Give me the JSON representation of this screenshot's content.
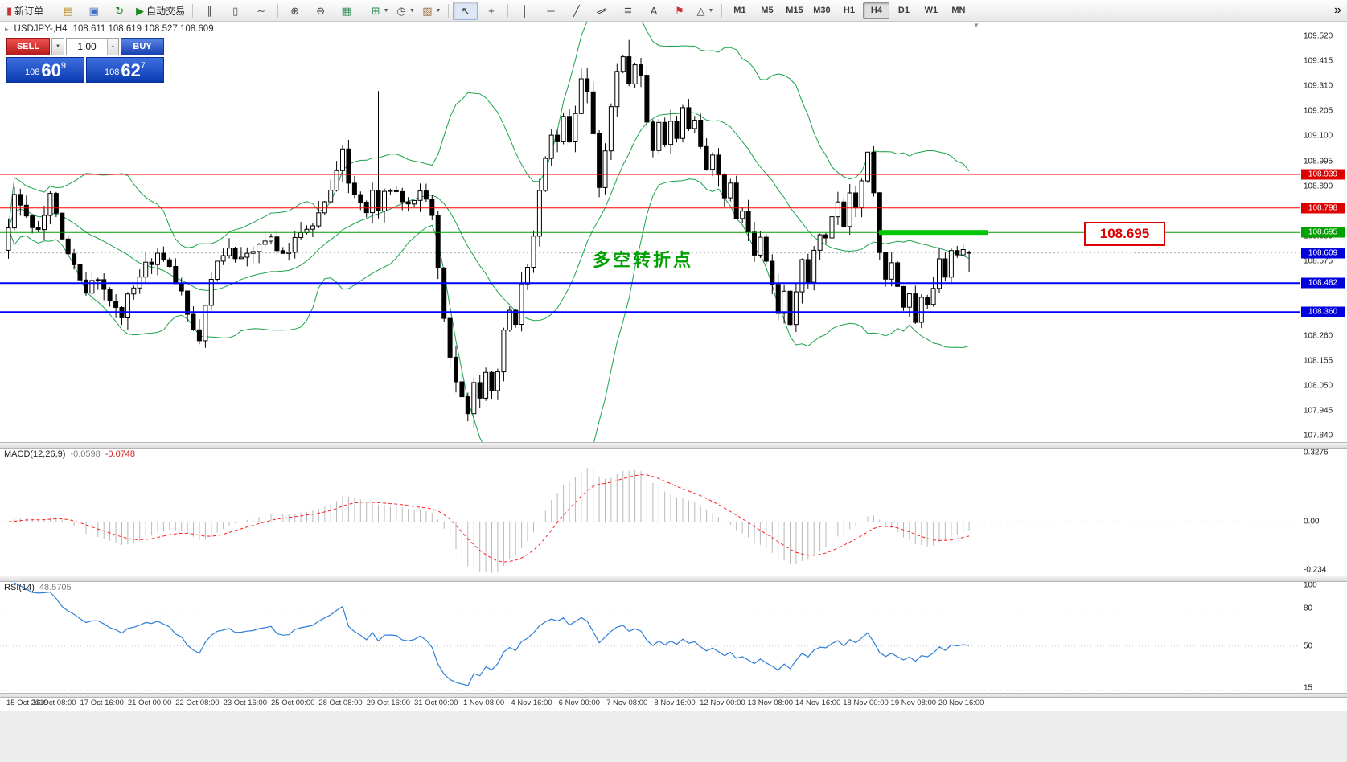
{
  "icons": {
    "caret_down": "▼",
    "caret_up": "▲",
    "shift_marker": "▼",
    "chart_title": "▸",
    "overflow": "»"
  },
  "toolbar": {
    "buttons": [
      {
        "name": "new-order-button",
        "glyph": "▮",
        "color": "#cc3333",
        "label": "新订单"
      },
      {
        "sep": true
      },
      {
        "name": "charts-button",
        "glyph": "▤",
        "color": "#bb8822"
      },
      {
        "name": "profiles-button",
        "glyph": "▣",
        "color": "#3f6fc8"
      },
      {
        "name": "refresh-button",
        "glyph": "↻",
        "color": "#1a8a1a"
      },
      {
        "name": "autotrading-button",
        "glyph": "▶",
        "color": "#1a8a1a",
        "label": "自动交易"
      },
      {
        "sep": true
      },
      {
        "name": "bar-chart-type-button",
        "glyph": "∥",
        "color": "#555555"
      },
      {
        "name": "candlestick-type-button",
        "glyph": "▯",
        "color": "#555555"
      },
      {
        "name": "line-chart-type-button",
        "glyph": "∼",
        "color": "#555555"
      },
      {
        "sep": true
      },
      {
        "name": "zoom-in-button",
        "glyph": "⊕",
        "color": "#444444"
      },
      {
        "name": "zoom-out-button",
        "glyph": "⊖",
        "color": "#444444"
      },
      {
        "name": "tester-button",
        "glyph": "▦",
        "color": "#2e8b57"
      },
      {
        "sep": true
      },
      {
        "name": "indicators-dropdown",
        "glyph": "⊞",
        "color": "#2e8b57",
        "dropdown": true
      },
      {
        "name": "periods-dropdown",
        "glyph": "◷",
        "color": "#444444",
        "dropdown": true
      },
      {
        "name": "templates-dropdown",
        "glyph": "▨",
        "color": "#996633",
        "dropdown": true
      },
      {
        "sep": true
      },
      {
        "name": "cursor-button",
        "glyph": "↖",
        "color": "#333333",
        "active": true
      },
      {
        "name": "crosshair-button",
        "glyph": "+",
        "color": "#333333"
      },
      {
        "sep": true
      },
      {
        "name": "vertical-line-button",
        "glyph": "│",
        "color": "#444444"
      },
      {
        "name": "horizontal-line-button",
        "glyph": "─",
        "color": "#444444"
      },
      {
        "name": "trendline-button",
        "glyph": "╱",
        "color": "#444444"
      },
      {
        "name": "channel-button",
        "glyph": "∥",
        "color": "#444444",
        "rotate": 65
      },
      {
        "name": "fibonacci-button",
        "glyph": "≣",
        "color": "#444444"
      },
      {
        "name": "text-button",
        "glyph": "A",
        "color": "#444444"
      },
      {
        "name": "label-button",
        "glyph": "⚑",
        "color": "#cc3333"
      },
      {
        "name": "shapes-dropdown",
        "glyph": "△",
        "color": "#444444",
        "dropdown": true
      },
      {
        "sep": true
      }
    ],
    "timeframes": [
      "M1",
      "M5",
      "M15",
      "M30",
      "H1",
      "H4",
      "D1",
      "W1",
      "MN"
    ],
    "active_timeframe": "H4"
  },
  "one_click": {
    "sell_label": "SELL",
    "buy_label": "BUY",
    "volume": "1.00",
    "bid_prefix": "108",
    "bid_main": "60",
    "bid_sup": "9",
    "ask_prefix": "108",
    "ask_main": "62",
    "ask_sup": "7"
  },
  "chart": {
    "title_symbol": "USDJPY-,H4",
    "title_ohlc": "108.611 108.619 108.527 108.609",
    "annotation_text": "多空转折点",
    "big_price_label": "108.695",
    "bid_label": "108.609",
    "axis_max": 109.585,
    "axis_min": 107.813,
    "axis_ticks": [
      "109.520",
      "109.415",
      "109.310",
      "109.205",
      "109.100",
      "108.995",
      "108.890",
      "108.785",
      "108.680",
      "108.575",
      "108.470",
      "108.365",
      "108.260",
      "108.155",
      "108.050",
      "107.945",
      "107.840"
    ],
    "levels": [
      {
        "price": 108.939,
        "label": "108.939",
        "color": "#ff0000",
        "width": 1,
        "label_bg": "#dd0000"
      },
      {
        "price": 108.798,
        "label": "108.798",
        "color": "#ff0000",
        "width": 1,
        "label_bg": "#dd0000"
      },
      {
        "price": 108.695,
        "label": "108.695",
        "color": "#00a000",
        "width": 1,
        "label_bg": "#00a000",
        "thick_segment": true
      },
      {
        "price": 108.482,
        "label": "108.482",
        "color": "#0000ff",
        "width": 2,
        "label_bg": "#0000dd"
      },
      {
        "price": 108.36,
        "label": "108.360",
        "color": "#0000ff",
        "width": 2,
        "label_bg": "#0000dd"
      }
    ],
    "colors": {
      "bollinger": "#1aa34a",
      "candle_up": "#ffffff",
      "candle_down": "#000000",
      "thick_segment": "#00c800",
      "bid_line": "#b9b9b9",
      "macd_histogram": "#b8b8b8",
      "macd_signal": "#ff2020",
      "rsi_line": "#2f7ed8",
      "tag_blue": "#0000dd"
    }
  },
  "macd_pane": {
    "name": "MACD(12,26,9)",
    "value1": "-0.0598",
    "value2": "-0.0748",
    "scale_top": "0.3276",
    "scale_mid": "0.00",
    "scale_bottom": "-0.234",
    "range_max": 0.3276,
    "range_min": -0.234
  },
  "rsi_pane": {
    "name": "RSI(14)",
    "value": "48.5705",
    "scale": [
      {
        "label": "100",
        "value": 100
      },
      {
        "label": "80",
        "value": 80
      },
      {
        "label": "50",
        "value": 50
      },
      {
        "label": "15",
        "value": 15
      }
    ],
    "levels": [
      80,
      50,
      15
    ],
    "range_max": 102,
    "range_min": 13
  },
  "dates": [
    "15 Oct 2019",
    "16 Oct 08:00",
    "17 Oct 16:00",
    "21 Oct 00:00",
    "22 Oct 08:00",
    "23 Oct 16:00",
    "25 Oct 00:00",
    "28 Oct 08:00",
    "29 Oct 16:00",
    "31 Oct 00:00",
    "1 Nov 08:00",
    "4 Nov 16:00",
    "6 Nov 00:00",
    "7 Nov 08:00",
    "8 Nov 16:00",
    "12 Nov 00:00",
    "13 Nov 08:00",
    "14 Nov 16:00",
    "18 Nov 00:00",
    "19 Nov 08:00",
    "20 Nov 16:00"
  ],
  "chart_data": {
    "type": "candlestick",
    "symbol": "USDJPY",
    "timeframe": "H4",
    "candle_count": 162,
    "bars_per_date_label": 8,
    "y_axis": {
      "min": 107.84,
      "max": 109.52,
      "tick_step": 0.105
    },
    "last_candle": {
      "open": 108.611,
      "high": 108.619,
      "low": 108.527,
      "close": 108.609
    },
    "special_wicks": [
      [
        62,
        "high",
        109.29
      ],
      [
        78,
        "low",
        107.875
      ],
      [
        104,
        "high",
        109.505
      ]
    ],
    "price_path_anchors": [
      [
        0,
        108.62
      ],
      [
        2,
        108.85
      ],
      [
        4,
        108.75
      ],
      [
        6,
        108.7
      ],
      [
        8,
        108.86
      ],
      [
        10,
        108.66
      ],
      [
        12,
        108.56
      ],
      [
        14,
        108.45
      ],
      [
        16,
        108.5
      ],
      [
        18,
        108.42
      ],
      [
        20,
        108.36
      ],
      [
        22,
        108.48
      ],
      [
        24,
        108.55
      ],
      [
        26,
        108.6
      ],
      [
        28,
        108.54
      ],
      [
        30,
        108.45
      ],
      [
        32,
        108.3
      ],
      [
        33,
        108.24
      ],
      [
        34,
        108.4
      ],
      [
        36,
        108.55
      ],
      [
        38,
        108.62
      ],
      [
        40,
        108.58
      ],
      [
        42,
        108.62
      ],
      [
        44,
        108.68
      ],
      [
        46,
        108.64
      ],
      [
        48,
        108.6
      ],
      [
        50,
        108.7
      ],
      [
        52,
        108.73
      ],
      [
        54,
        108.8
      ],
      [
        56,
        108.95
      ],
      [
        57,
        109.03
      ],
      [
        58,
        108.9
      ],
      [
        60,
        108.84
      ],
      [
        61,
        108.76
      ],
      [
        62,
        108.86
      ],
      [
        63,
        108.8
      ],
      [
        64,
        108.86
      ],
      [
        66,
        108.88
      ],
      [
        68,
        108.8
      ],
      [
        70,
        108.86
      ],
      [
        72,
        108.78
      ],
      [
        73,
        108.55
      ],
      [
        74,
        108.32
      ],
      [
        75,
        108.16
      ],
      [
        76,
        108.06
      ],
      [
        77,
        107.98
      ],
      [
        78,
        107.95
      ],
      [
        79,
        108.06
      ],
      [
        80,
        107.99
      ],
      [
        81,
        108.09
      ],
      [
        82,
        108.03
      ],
      [
        83,
        108.13
      ],
      [
        84,
        108.26
      ],
      [
        85,
        108.36
      ],
      [
        86,
        108.31
      ],
      [
        87,
        108.46
      ],
      [
        88,
        108.56
      ],
      [
        89,
        108.7
      ],
      [
        90,
        108.86
      ],
      [
        91,
        109.0
      ],
      [
        92,
        109.12
      ],
      [
        93,
        109.06
      ],
      [
        94,
        109.16
      ],
      [
        95,
        109.1
      ],
      [
        96,
        109.2
      ],
      [
        97,
        109.34
      ],
      [
        98,
        109.27
      ],
      [
        99,
        109.1
      ],
      [
        100,
        108.88
      ],
      [
        101,
        109.02
      ],
      [
        102,
        109.2
      ],
      [
        103,
        109.38
      ],
      [
        104,
        109.44
      ],
      [
        105,
        109.32
      ],
      [
        106,
        109.42
      ],
      [
        107,
        109.35
      ],
      [
        108,
        109.16
      ],
      [
        109,
        109.06
      ],
      [
        110,
        109.14
      ],
      [
        111,
        109.08
      ],
      [
        112,
        109.16
      ],
      [
        113,
        109.1
      ],
      [
        114,
        109.2
      ],
      [
        115,
        109.12
      ],
      [
        116,
        109.18
      ],
      [
        117,
        109.04
      ],
      [
        118,
        108.94
      ],
      [
        119,
        109.0
      ],
      [
        120,
        108.95
      ],
      [
        121,
        108.85
      ],
      [
        122,
        108.9
      ],
      [
        123,
        108.76
      ],
      [
        124,
        108.8
      ],
      [
        125,
        108.7
      ],
      [
        126,
        108.6
      ],
      [
        127,
        108.66
      ],
      [
        128,
        108.56
      ],
      [
        129,
        108.46
      ],
      [
        130,
        108.36
      ],
      [
        131,
        108.43
      ],
      [
        132,
        108.3
      ],
      [
        133,
        108.46
      ],
      [
        134,
        108.56
      ],
      [
        135,
        108.5
      ],
      [
        136,
        108.62
      ],
      [
        137,
        108.7
      ],
      [
        138,
        108.66
      ],
      [
        139,
        108.76
      ],
      [
        140,
        108.8
      ],
      [
        141,
        108.72
      ],
      [
        142,
        108.86
      ],
      [
        143,
        108.8
      ],
      [
        144,
        108.9
      ],
      [
        145,
        109.02
      ],
      [
        146,
        108.84
      ],
      [
        147,
        108.6
      ],
      [
        148,
        108.5
      ],
      [
        149,
        108.56
      ],
      [
        150,
        108.46
      ],
      [
        151,
        108.36
      ],
      [
        152,
        108.42
      ],
      [
        153,
        108.3
      ],
      [
        154,
        108.43
      ],
      [
        155,
        108.38
      ],
      [
        156,
        108.46
      ],
      [
        157,
        108.56
      ],
      [
        158,
        108.5
      ],
      [
        159,
        108.6
      ],
      [
        160,
        108.62
      ],
      [
        161,
        108.61
      ]
    ],
    "horizontal_lines": [
      {
        "price": 108.939,
        "color": "red"
      },
      {
        "price": 108.798,
        "color": "red"
      },
      {
        "price": 108.695,
        "color": "green",
        "highlighted_segment": true
      },
      {
        "price": 108.482,
        "color": "blue"
      },
      {
        "price": 108.36,
        "color": "blue"
      }
    ],
    "overlays": [
      "Bollinger Bands"
    ],
    "bollinger": {
      "period": 20,
      "deviation": 2
    },
    "annotation": "多空转折点"
  }
}
